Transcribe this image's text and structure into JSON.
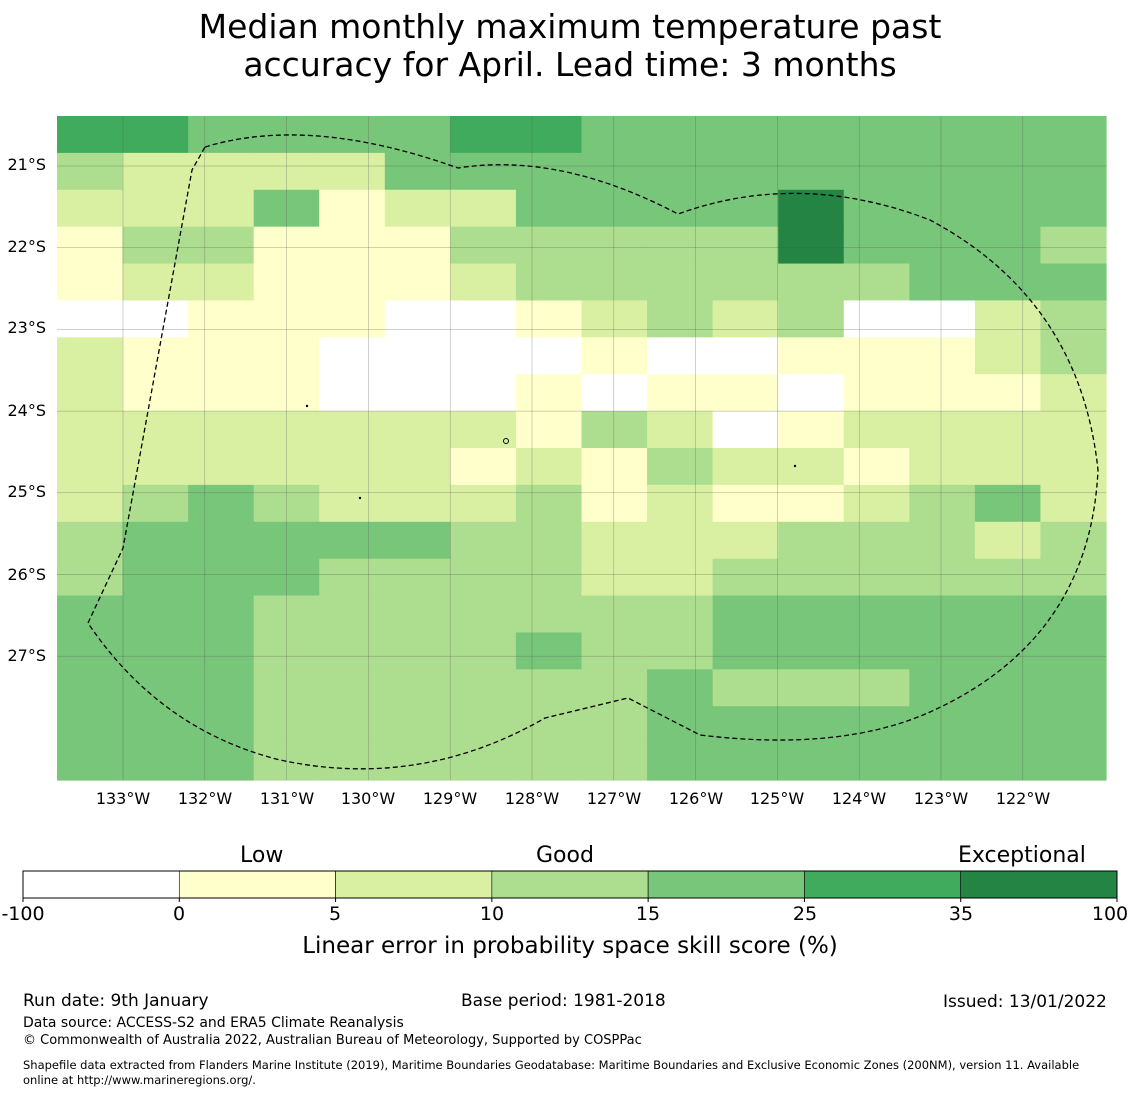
{
  "title": {
    "line1": "Median monthly maximum temperature past",
    "line2": "accuracy for April. Lead time: 3 months"
  },
  "map": {
    "lat_labels": [
      "21°S",
      "22°S",
      "23°S",
      "24°S",
      "25°S",
      "26°S",
      "27°S"
    ],
    "lon_labels": [
      "133°W",
      "132°W",
      "131°W",
      "130°W",
      "129°W",
      "128°W",
      "127°W",
      "126°W",
      "125°W",
      "124°W",
      "123°W",
      "122°W"
    ],
    "cell_grid": [
      "5544445544444444",
      "3222244444444444",
      "2224122444464444",
      "1331113333364443",
      "1221112333333444",
      "0011100123230023",
      "2111000010011123",
      "2111000101101112",
      "2222222132012222",
      "2222221213221222",
      "2343222312112342",
      "3444443322233323",
      "3444333322333333",
      "4443333333444444",
      "4443333433444444",
      "4443333334333444",
      "4443333334444444",
      "4443333334444444"
    ],
    "colors": [
      "#ffffff",
      "#ffffcc",
      "#d9f0a3",
      "#addd8e",
      "#78c679",
      "#41ab5d",
      "#238443"
    ]
  },
  "legend": {
    "categories": [
      "Low",
      "Good",
      "Exceptional"
    ],
    "ticks": [
      "-100",
      "0",
      "5",
      "10",
      "15",
      "25",
      "35",
      "100"
    ],
    "label": "Linear error in probability space skill score (%)"
  },
  "footer": {
    "run_date": "Run date: 9th January",
    "base_period": "Base period: 1981-2018",
    "issued": "Issued: 13/01/2022",
    "data_source": "Data source: ACCESS-S2 and ERA5 Climate Reanalysis",
    "copyright": "© Commonwealth of Australia 2022, Australian Bureau of Meteorology, Supported by COSPPac",
    "shapefile_line1": "Shapefile data extracted from Flanders Marine Institute (2019), Maritime Boundaries Geodatabase: Maritime Boundaries and Exclusive Economic Zones (200NM), version 11. Available",
    "shapefile_line2": "online at http://www.marineregions.org/."
  }
}
